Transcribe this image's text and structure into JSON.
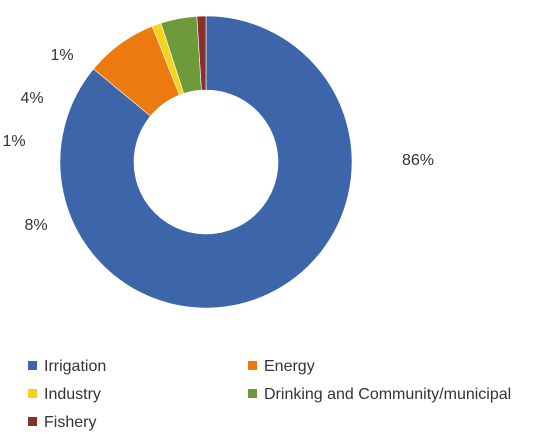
{
  "chart_data": {
    "type": "pie",
    "donut": true,
    "categories": [
      "Irrigation",
      "Energy",
      "Industry",
      "Drinking and Community/municipal",
      "Fishery"
    ],
    "values": [
      86,
      8,
      1,
      4,
      1
    ],
    "value_labels": [
      "86%",
      "8%",
      "1%",
      "4%",
      "1%"
    ],
    "colors": [
      "#3c66a9",
      "#ec7a0f",
      "#f5d31b",
      "#6f9a3b",
      "#8a2f2c"
    ],
    "legend_position": "bottom",
    "title": ""
  }
}
